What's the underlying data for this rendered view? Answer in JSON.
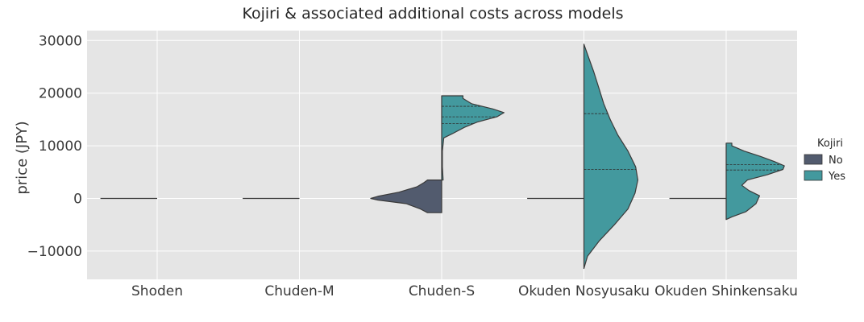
{
  "chart_data": {
    "type": "violin",
    "title": "Kojiri & associated additional costs across models",
    "xlabel": "",
    "ylabel": "price (JPY)",
    "ylim": [
      -15500,
      30500
    ],
    "yticks": [
      30000,
      20000,
      10000,
      0,
      -10000
    ],
    "ytick_labels": [
      "30000",
      "20000",
      "10000",
      "0",
      "−10000"
    ],
    "categories": [
      "Shoden",
      "Chuden-M",
      "Chuden-S",
      "Okuden Nosyusaku",
      "Okuden Shinkensaku"
    ],
    "grid": true,
    "split": true,
    "legend": {
      "title": "Kojiri",
      "placement": "right",
      "entries": [
        "No",
        "Yes"
      ]
    },
    "series": [
      {
        "name": "No",
        "color": "#525b6e",
        "violins": [
          {
            "category": "Shoden",
            "degenerate": true,
            "value": 0
          },
          {
            "category": "Chuden-M",
            "degenerate": true,
            "value": 0
          },
          {
            "category": "Chuden-S",
            "range": [
              -2700,
              3500
            ],
            "density": [
              [
                -2700,
                0.2
              ],
              [
                -2000,
                0.3
              ],
              [
                -1000,
                0.5
              ],
              [
                -300,
                0.9
              ],
              [
                0,
                1.0
              ],
              [
                400,
                0.9
              ],
              [
                1200,
                0.6
              ],
              [
                2200,
                0.35
              ],
              [
                3000,
                0.25
              ],
              [
                3500,
                0.2
              ]
            ]
          },
          {
            "category": "Okuden Nosyusaku",
            "degenerate": true,
            "value": 0
          },
          {
            "category": "Okuden Shinkensaku",
            "degenerate": true,
            "value": 0
          }
        ]
      },
      {
        "name": "Yes",
        "color": "#43999e",
        "violins": [
          {
            "category": "Chuden-S",
            "range": [
              3500,
              19500
            ],
            "density": [
              [
                3500,
                0.02
              ],
              [
                6000,
                0.01
              ],
              [
                9000,
                0.01
              ],
              [
                11500,
                0.03
              ],
              [
                12300,
                0.15
              ],
              [
                13500,
                0.32
              ],
              [
                14500,
                0.5
              ],
              [
                15500,
                0.78
              ],
              [
                16300,
                0.88
              ],
              [
                17000,
                0.72
              ],
              [
                18000,
                0.42
              ],
              [
                19000,
                0.3
              ],
              [
                19500,
                0.3
              ]
            ],
            "quartiles": [
              14200,
              15500,
              17500
            ]
          },
          {
            "category": "Okuden Nosyusaku",
            "range": [
              -13300,
              29300
            ],
            "density": [
              [
                -13300,
                0.0
              ],
              [
                -11000,
                0.05
              ],
              [
                -8000,
                0.22
              ],
              [
                -5000,
                0.43
              ],
              [
                -2000,
                0.62
              ],
              [
                1000,
                0.72
              ],
              [
                3500,
                0.76
              ],
              [
                6000,
                0.73
              ],
              [
                9000,
                0.62
              ],
              [
                12000,
                0.48
              ],
              [
                15000,
                0.37
              ],
              [
                18000,
                0.28
              ],
              [
                21000,
                0.21
              ],
              [
                24000,
                0.14
              ],
              [
                27000,
                0.06
              ],
              [
                29300,
                0.0
              ]
            ],
            "quartiles": [
              null,
              5500,
              16100
            ]
          },
          {
            "category": "Okuden Shinkensaku",
            "range": [
              -4000,
              10500
            ],
            "density": [
              [
                -4000,
                0.0
              ],
              [
                -3500,
                0.08
              ],
              [
                -2500,
                0.28
              ],
              [
                -1000,
                0.42
              ],
              [
                500,
                0.47
              ],
              [
                1500,
                0.32
              ],
              [
                2500,
                0.22
              ],
              [
                3500,
                0.3
              ],
              [
                4500,
                0.58
              ],
              [
                5500,
                0.8
              ],
              [
                6200,
                0.82
              ],
              [
                7000,
                0.68
              ],
              [
                8000,
                0.48
              ],
              [
                9000,
                0.25
              ],
              [
                10000,
                0.08
              ],
              [
                10500,
                0.08
              ]
            ],
            "quartiles": [
              5400,
              6400
            ]
          }
        ]
      }
    ]
  }
}
